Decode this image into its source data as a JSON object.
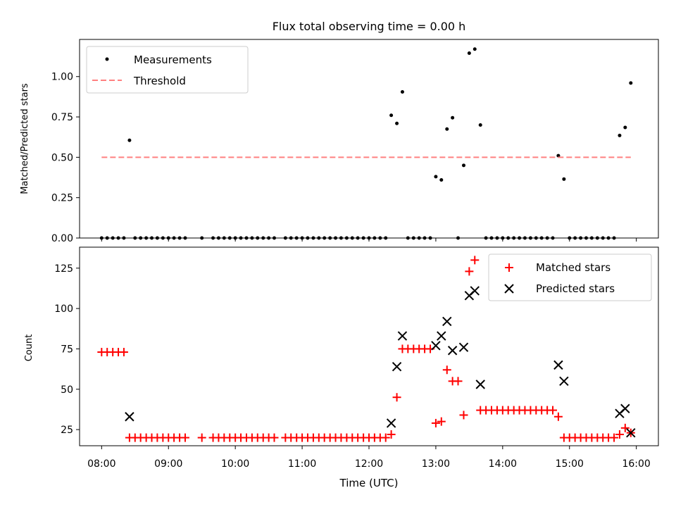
{
  "chart_data": [
    {
      "type": "scatter",
      "title": "Flux total observing time = 0.00 h",
      "xlabel": "",
      "ylabel": "Matched/Predicted stars",
      "xlim_hours": [
        7.67,
        16.33
      ],
      "ylim": [
        0,
        1.23
      ],
      "yticks": [
        0.0,
        0.25,
        0.5,
        0.75,
        1.0
      ],
      "ytick_labels": [
        "0.00",
        "0.25",
        "0.50",
        "0.75",
        "1.00"
      ],
      "legend_position": "upper-left",
      "series": [
        {
          "name": "Measurements",
          "kind": "dots",
          "color": "#000000",
          "points": [
            [
              8.0,
              0
            ],
            [
              8.083,
              0
            ],
            [
              8.167,
              0
            ],
            [
              8.25,
              0
            ],
            [
              8.333,
              0
            ],
            [
              8.417,
              0.605
            ],
            [
              8.5,
              0
            ],
            [
              8.583,
              0
            ],
            [
              8.667,
              0
            ],
            [
              8.75,
              0
            ],
            [
              8.833,
              0
            ],
            [
              8.917,
              0
            ],
            [
              9.0,
              0
            ],
            [
              9.083,
              0
            ],
            [
              9.167,
              0
            ],
            [
              9.25,
              0
            ],
            [
              9.5,
              0
            ],
            [
              9.667,
              0
            ],
            [
              9.75,
              0
            ],
            [
              9.833,
              0
            ],
            [
              9.917,
              0
            ],
            [
              10.0,
              0
            ],
            [
              10.083,
              0
            ],
            [
              10.167,
              0
            ],
            [
              10.25,
              0
            ],
            [
              10.333,
              0
            ],
            [
              10.417,
              0
            ],
            [
              10.5,
              0
            ],
            [
              10.583,
              0
            ],
            [
              10.75,
              0
            ],
            [
              10.833,
              0
            ],
            [
              10.917,
              0
            ],
            [
              11.0,
              0
            ],
            [
              11.083,
              0
            ],
            [
              11.167,
              0
            ],
            [
              11.25,
              0
            ],
            [
              11.333,
              0
            ],
            [
              11.417,
              0
            ],
            [
              11.5,
              0
            ],
            [
              11.583,
              0
            ],
            [
              11.667,
              0
            ],
            [
              11.75,
              0
            ],
            [
              11.833,
              0
            ],
            [
              11.917,
              0
            ],
            [
              12.0,
              0
            ],
            [
              12.083,
              0
            ],
            [
              12.167,
              0
            ],
            [
              12.25,
              0
            ],
            [
              12.333,
              0.76
            ],
            [
              12.417,
              0.71
            ],
            [
              12.5,
              0.905
            ],
            [
              12.583,
              0
            ],
            [
              12.667,
              0
            ],
            [
              12.75,
              0
            ],
            [
              12.833,
              0
            ],
            [
              12.917,
              0
            ],
            [
              13.0,
              0.38
            ],
            [
              13.083,
              0.36
            ],
            [
              13.167,
              0.675
            ],
            [
              13.25,
              0.745
            ],
            [
              13.333,
              0
            ],
            [
              13.417,
              0.45
            ],
            [
              13.5,
              1.145
            ],
            [
              13.583,
              1.17
            ],
            [
              13.667,
              0.7
            ],
            [
              13.75,
              0
            ],
            [
              13.833,
              0
            ],
            [
              13.917,
              0
            ],
            [
              14.0,
              0
            ],
            [
              14.083,
              0
            ],
            [
              14.167,
              0
            ],
            [
              14.25,
              0
            ],
            [
              14.333,
              0
            ],
            [
              14.417,
              0
            ],
            [
              14.5,
              0
            ],
            [
              14.583,
              0
            ],
            [
              14.667,
              0
            ],
            [
              14.75,
              0
            ],
            [
              14.833,
              0.51
            ],
            [
              14.917,
              0.365
            ],
            [
              15.0,
              0
            ],
            [
              15.083,
              0
            ],
            [
              15.167,
              0
            ],
            [
              15.25,
              0
            ],
            [
              15.333,
              0
            ],
            [
              15.417,
              0
            ],
            [
              15.5,
              0
            ],
            [
              15.583,
              0
            ],
            [
              15.667,
              0
            ],
            [
              15.75,
              0.635
            ],
            [
              15.833,
              0.685
            ],
            [
              15.917,
              0.96
            ]
          ]
        },
        {
          "name": "Threshold",
          "kind": "dashed-line",
          "color": "#ff8080",
          "points": [
            [
              8.0,
              0.5
            ],
            [
              15.917,
              0.5
            ]
          ]
        }
      ]
    },
    {
      "type": "scatter",
      "title": "",
      "xlabel": "Time (UTC)",
      "ylabel": "Count",
      "xlim_hours": [
        7.67,
        16.33
      ],
      "ylim": [
        15,
        138
      ],
      "yticks": [
        25,
        50,
        75,
        100,
        125
      ],
      "ytick_labels": [
        "25",
        "50",
        "75",
        "100",
        "125"
      ],
      "xticks": [
        8,
        9,
        10,
        11,
        12,
        13,
        14,
        15,
        16
      ],
      "xtick_labels": [
        "08:00",
        "09:00",
        "10:00",
        "11:00",
        "12:00",
        "13:00",
        "14:00",
        "15:00",
        "16:00"
      ],
      "legend_position": "upper-right",
      "series": [
        {
          "name": "Matched stars",
          "kind": "plus",
          "color": "#ff0000",
          "points": [
            [
              8.0,
              73
            ],
            [
              8.083,
              73
            ],
            [
              8.167,
              73
            ],
            [
              8.25,
              73
            ],
            [
              8.333,
              73
            ],
            [
              8.417,
              20
            ],
            [
              8.5,
              20
            ],
            [
              8.583,
              20
            ],
            [
              8.667,
              20
            ],
            [
              8.75,
              20
            ],
            [
              8.833,
              20
            ],
            [
              8.917,
              20
            ],
            [
              9.0,
              20
            ],
            [
              9.083,
              20
            ],
            [
              9.167,
              20
            ],
            [
              9.25,
              20
            ],
            [
              9.5,
              20
            ],
            [
              9.667,
              20
            ],
            [
              9.75,
              20
            ],
            [
              9.833,
              20
            ],
            [
              9.917,
              20
            ],
            [
              10.0,
              20
            ],
            [
              10.083,
              20
            ],
            [
              10.167,
              20
            ],
            [
              10.25,
              20
            ],
            [
              10.333,
              20
            ],
            [
              10.417,
              20
            ],
            [
              10.5,
              20
            ],
            [
              10.583,
              20
            ],
            [
              10.75,
              20
            ],
            [
              10.833,
              20
            ],
            [
              10.917,
              20
            ],
            [
              11.0,
              20
            ],
            [
              11.083,
              20
            ],
            [
              11.167,
              20
            ],
            [
              11.25,
              20
            ],
            [
              11.333,
              20
            ],
            [
              11.417,
              20
            ],
            [
              11.5,
              20
            ],
            [
              11.583,
              20
            ],
            [
              11.667,
              20
            ],
            [
              11.75,
              20
            ],
            [
              11.833,
              20
            ],
            [
              11.917,
              20
            ],
            [
              12.0,
              20
            ],
            [
              12.083,
              20
            ],
            [
              12.167,
              20
            ],
            [
              12.25,
              20
            ],
            [
              12.333,
              22
            ],
            [
              12.417,
              45
            ],
            [
              12.5,
              75
            ],
            [
              12.583,
              75
            ],
            [
              12.667,
              75
            ],
            [
              12.75,
              75
            ],
            [
              12.833,
              75
            ],
            [
              12.917,
              75
            ],
            [
              13.0,
              29
            ],
            [
              13.083,
              30
            ],
            [
              13.167,
              62
            ],
            [
              13.25,
              55
            ],
            [
              13.333,
              55
            ],
            [
              13.417,
              34
            ],
            [
              13.5,
              123
            ],
            [
              13.583,
              130
            ],
            [
              13.667,
              37
            ],
            [
              13.75,
              37
            ],
            [
              13.833,
              37
            ],
            [
              13.917,
              37
            ],
            [
              14.0,
              37
            ],
            [
              14.083,
              37
            ],
            [
              14.167,
              37
            ],
            [
              14.25,
              37
            ],
            [
              14.333,
              37
            ],
            [
              14.417,
              37
            ],
            [
              14.5,
              37
            ],
            [
              14.583,
              37
            ],
            [
              14.667,
              37
            ],
            [
              14.75,
              37
            ],
            [
              14.833,
              33
            ],
            [
              14.917,
              20
            ],
            [
              15.0,
              20
            ],
            [
              15.083,
              20
            ],
            [
              15.167,
              20
            ],
            [
              15.25,
              20
            ],
            [
              15.333,
              20
            ],
            [
              15.417,
              20
            ],
            [
              15.5,
              20
            ],
            [
              15.583,
              20
            ],
            [
              15.667,
              20
            ],
            [
              15.75,
              22
            ],
            [
              15.833,
              26
            ],
            [
              15.917,
              23
            ]
          ]
        },
        {
          "name": "Predicted stars",
          "kind": "x",
          "color": "#000000",
          "points": [
            [
              8.417,
              33
            ],
            [
              12.333,
              29
            ],
            [
              12.417,
              64
            ],
            [
              12.5,
              83
            ],
            [
              13.0,
              77
            ],
            [
              13.083,
              83
            ],
            [
              13.167,
              92
            ],
            [
              13.25,
              74
            ],
            [
              13.417,
              76
            ],
            [
              13.5,
              108
            ],
            [
              13.583,
              111
            ],
            [
              13.667,
              53
            ],
            [
              14.833,
              65
            ],
            [
              14.917,
              55
            ],
            [
              15.75,
              35
            ],
            [
              15.833,
              38
            ],
            [
              15.917,
              23
            ]
          ]
        }
      ]
    }
  ]
}
